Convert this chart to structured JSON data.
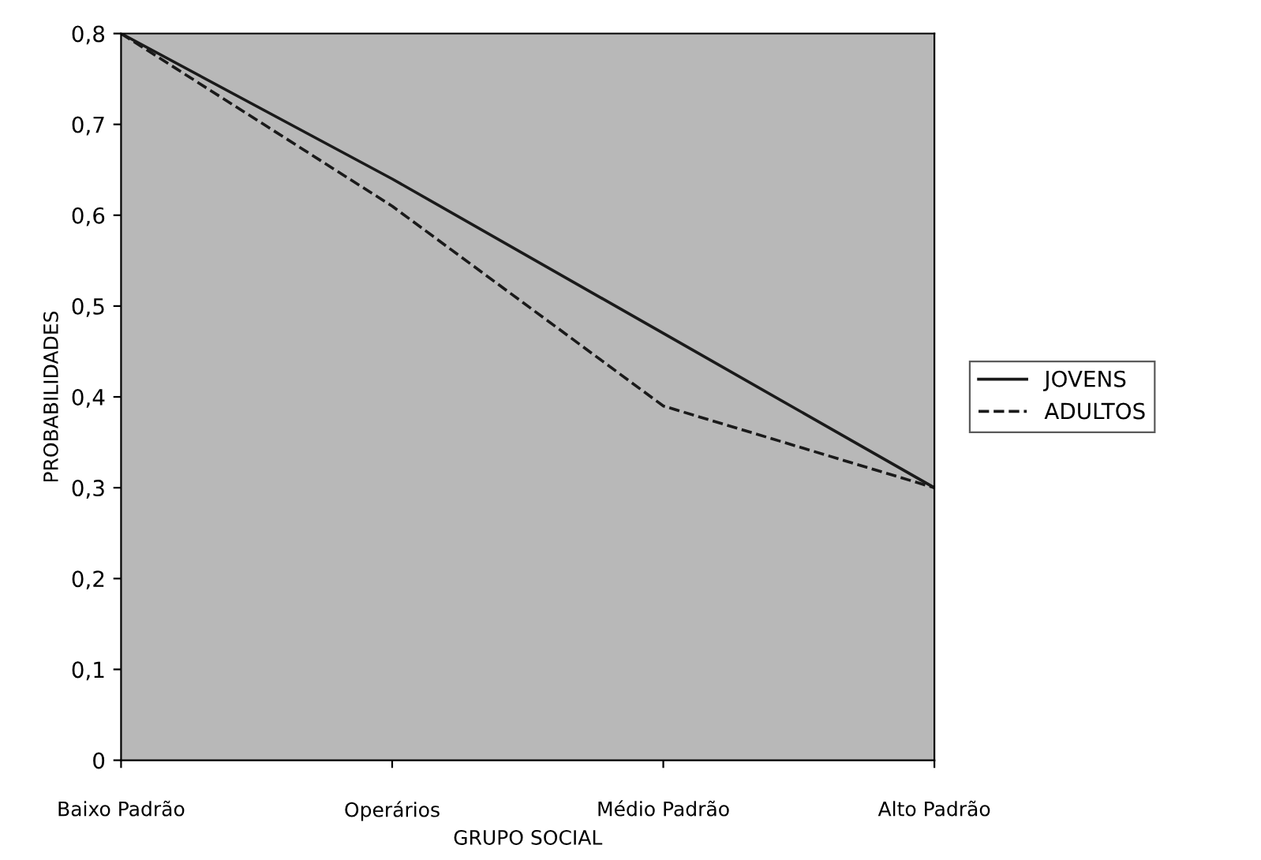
{
  "chart_data": {
    "type": "line",
    "xlabel": "GRUPO SOCIAL",
    "ylabel": "PROBABILIDADES",
    "categories": [
      "Baixo Padrão",
      "Operários",
      "Médio Padrão",
      "Alto Padrão"
    ],
    "series": [
      {
        "name": "JOVENS",
        "color": "#1a1a1a",
        "line_style": "solid",
        "values": [
          0.8,
          0.64,
          0.47,
          0.3
        ]
      },
      {
        "name": "ADULTOS",
        "color": "#1a1a1a",
        "line_style": "dashed",
        "values": [
          0.8,
          0.61,
          0.39,
          0.3
        ]
      }
    ],
    "ylim": [
      0,
      0.8
    ],
    "yticks": [
      0,
      {
        "value": 0.1,
        "label": "0,1"
      },
      {
        "value": 0.2,
        "label": "0,2"
      },
      {
        "value": 0.3,
        "label": "0,3"
      },
      {
        "value": 0.4,
        "label": "0,4"
      },
      {
        "value": 0.5,
        "label": "0,5"
      },
      {
        "value": 0.6,
        "label": "0,6"
      },
      {
        "value": 0.7,
        "label": "0,7"
      },
      {
        "value": 0.8,
        "label": "0,8"
      }
    ],
    "grid": false,
    "legend": "right",
    "marker": "none"
  }
}
